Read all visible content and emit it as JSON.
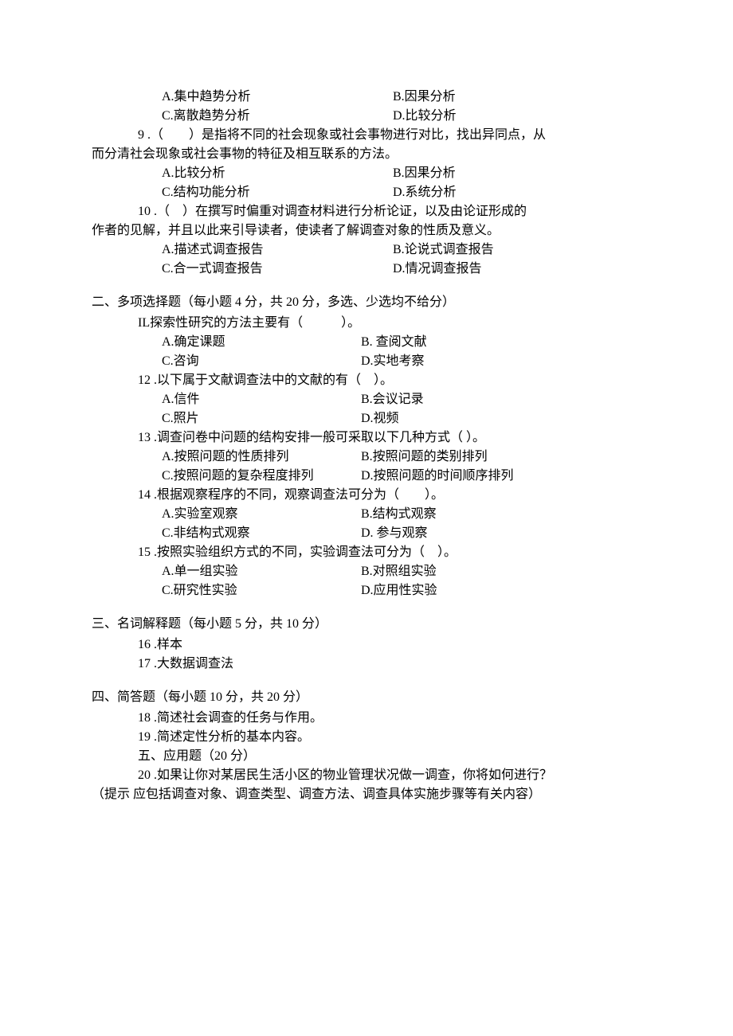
{
  "q8": {
    "optA": "A.集中趋势分析",
    "optB": "B.因果分析",
    "optC": "C.离散趋势分析",
    "optD": "D.比较分析"
  },
  "q9": {
    "stem1": "9 .（　　）是指将不同的社会现象或社会事物进行对比，找出异同点，从",
    "stem2": "而分清社会现象或社会事物的特征及相互联系的方法。",
    "optA": "A.比较分析",
    "optB": "B.因果分析",
    "optC": "C.结构功能分析",
    "optD": "D.系统分析"
  },
  "q10": {
    "stem1": "10 .（　）在撰写时偏重对调查材料进行分析论证，以及由论证形成的",
    "stem2": "作者的见解，并且以此来引导读者，使读者了解调查对象的性质及意义。",
    "optA": "A.描述式调查报告",
    "optB": "B.论说式调查报告",
    "optC": "C.合一式调查报告",
    "optD": "D.情况调查报告"
  },
  "section2": {
    "title": "二、多项选择题（每小题 4 分，共 20 分，多选、少选均不给分）"
  },
  "q11": {
    "stem": "IL探索性研究的方法主要有（　　　）。",
    "optA": "A.确定课题",
    "optB": "B. 查阅文献",
    "optC": "C.咨询",
    "optD": "D.实地考察"
  },
  "q12": {
    "stem": "12 .以下属于文献调查法中的文献的有（　）。",
    "optA": "A.信件",
    "optB": "B.会议记录",
    "optC": "C.照片",
    "optD": "D.视频"
  },
  "q13": {
    "stem": "13 .调查问卷中问题的结构安排一般可采取以下几种方式（ ）。",
    "optA": "A.按照问题的性质排列",
    "optB": "B.按照问题的类别排列",
    "optC": "C.按照问题的复杂程度排列",
    "optD": "D.按照问题的时间顺序排列"
  },
  "q14": {
    "stem": "14 .根据观察程序的不同，观察调查法可分为（　　）。",
    "optA": "A.实验室观察",
    "optB": "B.结构式观察",
    "optC": "C.非结构式观察",
    "optD": "D. 参与观察"
  },
  "q15": {
    "stem": "15 .按照实验组织方式的不同，实验调查法可分为（　）。",
    "optA": "A.单一组实验",
    "optB": "B.对照组实验",
    "optC": "C.研究性实验",
    "optD": "D.应用性实验"
  },
  "section3": {
    "title": "三、名词解释题（每小题 5 分，共 10 分）",
    "q16": "16 .样本",
    "q17": "17 .大数据调查法"
  },
  "section4": {
    "title": "四、简答题（每小题 10 分，共 20 分）",
    "q18": "18 .简述社会调查的任务与作用。",
    "q19": "19 .简述定性分析的基本内容。"
  },
  "section5": {
    "title": "五、应用题（20 分）",
    "q20": "20 .如果让你对某居民生活小区的物业管理状况做一调查，你将如何进行？",
    "hint": "（提示 应包括调查对象、调查类型、调查方法、调查具体实施步骤等有关内容）"
  }
}
